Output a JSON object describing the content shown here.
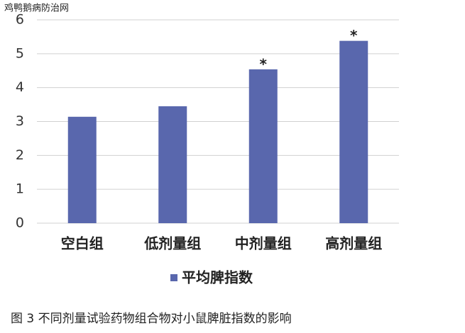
{
  "watermark": "鸡鸭鹅病防治网",
  "chart_data": {
    "type": "bar",
    "categories": [
      "空白组",
      "低剂量组",
      "中剂量组",
      "高剂量组"
    ],
    "series": [
      {
        "name": "平均脾指数",
        "color": "#5967ad",
        "values": [
          3.14,
          3.45,
          4.54,
          5.38
        ]
      }
    ],
    "annotations": [
      {
        "text": "*",
        "category": "中剂量组"
      },
      {
        "text": "*",
        "category": "高剂量组"
      }
    ],
    "ylim": [
      0,
      6
    ],
    "yticks": [
      0,
      1,
      2,
      3,
      4,
      5,
      6
    ],
    "grid": true
  },
  "caption": "图 3 不同剂量试验药物组合物对小鼠脾脏指数的影响"
}
